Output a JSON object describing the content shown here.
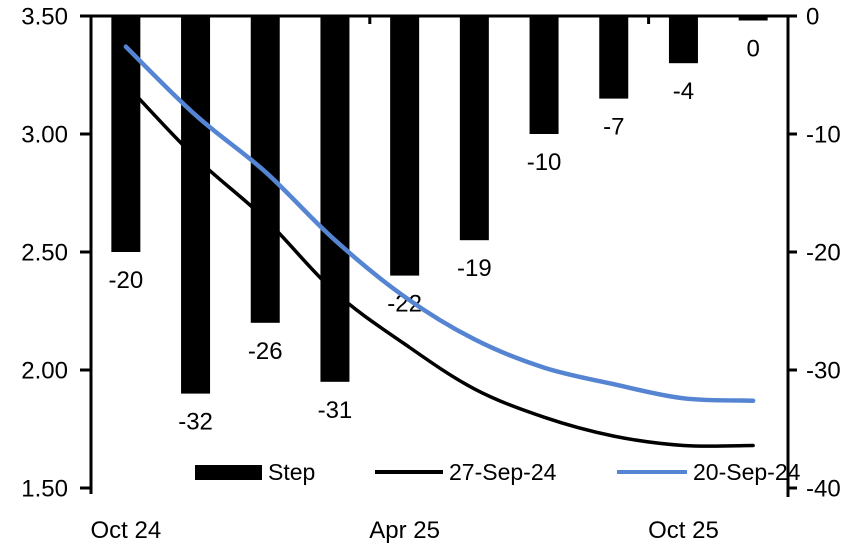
{
  "chart_data": {
    "type": "combo-bar-line",
    "title": "",
    "n_categories": 10,
    "x_axis": {
      "labels": [
        "Oct 24",
        "Apr 25",
        "Oct 25"
      ],
      "label_category_indices": [
        0,
        4,
        8
      ],
      "tick_boundary_indices": [
        4,
        8
      ]
    },
    "left_axis": {
      "min": 1.5,
      "max": 3.5,
      "tick_labels": [
        "3.50",
        "3.00",
        "2.50",
        "2.00",
        "1.50"
      ]
    },
    "right_axis": {
      "min": -40,
      "max": 0,
      "tick_labels": [
        "0",
        "-10",
        "-20",
        "-30",
        "-40"
      ]
    },
    "series": [
      {
        "name": "Step",
        "type": "bar",
        "axis": "right",
        "color": "#000000",
        "values": [
          -20,
          -32,
          -26,
          -31,
          -22,
          -19,
          -10,
          -7,
          -4,
          0
        ],
        "data_labels": [
          "-20",
          "-32",
          "-26",
          "-31",
          "-22",
          "-19",
          "-10",
          "-7",
          "-4",
          "0"
        ]
      },
      {
        "name": "27-Sep-24",
        "type": "line",
        "axis": "left",
        "color": "#000000",
        "smooth": true,
        "values": [
          3.21,
          2.9,
          2.64,
          2.33,
          2.11,
          1.92,
          1.8,
          1.72,
          1.68,
          1.68
        ]
      },
      {
        "name": "20-Sep-24",
        "type": "line",
        "axis": "left",
        "color": "#5585D2",
        "smooth": true,
        "values": [
          3.37,
          3.08,
          2.84,
          2.55,
          2.31,
          2.13,
          2.01,
          1.94,
          1.88,
          1.87
        ]
      }
    ],
    "legend": {
      "position": "bottom-inside",
      "items": [
        {
          "label": "Step",
          "swatch": "bar",
          "color": "#000000"
        },
        {
          "label": "27-Sep-24",
          "swatch": "line",
          "color": "#000000"
        },
        {
          "label": "20-Sep-24",
          "swatch": "line",
          "color": "#5585D2"
        }
      ]
    }
  }
}
